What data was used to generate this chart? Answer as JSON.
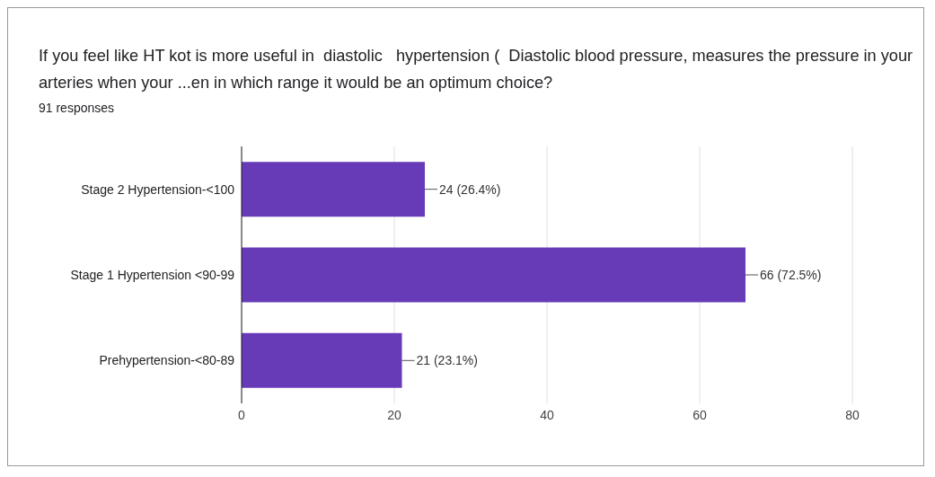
{
  "chart_data": {
    "type": "bar",
    "orientation": "horizontal",
    "title": "If you feel like HT kot is more useful in  diastolic   hypertension (  Diastolic blood pressure, measures the pressure in your arteries when your ...en in which range it would be an optimum choice?",
    "subtitle": "91 responses",
    "categories": [
      "Stage 2 Hypertension-<100",
      "Stage 1 Hypertension <90-99",
      "Prehypertension-<80-89"
    ],
    "values": [
      24,
      66,
      21
    ],
    "value_labels": [
      "24 (26.4%)",
      "66 (72.5%)",
      "21 (23.1%)"
    ],
    "color": "#673ab7",
    "xlim": [
      0,
      80
    ],
    "xticks": [
      0,
      20,
      40,
      60,
      80
    ],
    "grid": "x"
  }
}
